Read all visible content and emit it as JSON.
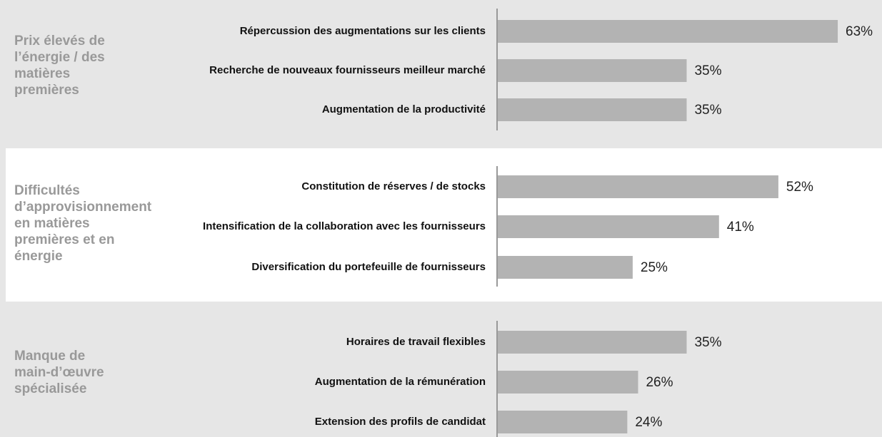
{
  "chart_data": [
    {
      "type": "bar",
      "orientation": "horizontal",
      "title": "Prix élevés de l’énergie / des matières premières",
      "categories": [
        "Répercussion des augmentations sur les clients",
        "Recherche de nouveaux fournisseurs meilleur marché",
        "Augmentation de la productivité"
      ],
      "values": [
        63,
        35,
        35
      ],
      "value_labels": [
        "63%",
        "35%",
        "35%"
      ],
      "color": "#b3b3b3"
    },
    {
      "type": "bar",
      "orientation": "horizontal",
      "title": "Difficultés d’approvisionnement en matières premières et en énergie",
      "categories": [
        "Constitution de réserves / de stocks",
        "Intensification de la collaboration avec les fournisseurs",
        "Diversification du portefeuille de fournisseurs"
      ],
      "values": [
        52,
        41,
        25
      ],
      "value_labels": [
        "52%",
        "41%",
        "25%"
      ],
      "color": "#b3b3b3"
    },
    {
      "type": "bar",
      "orientation": "horizontal",
      "title": "Manque de main-d’œuvre spécialisée",
      "categories": [
        "Horaires de travail flexibles",
        "Augmentation de la rémunération",
        "Extension des profils de candidat"
      ],
      "values": [
        35,
        26,
        24
      ],
      "value_labels": [
        "35%",
        "26%",
        "24%"
      ],
      "color": "#b3b3b3"
    }
  ]
}
